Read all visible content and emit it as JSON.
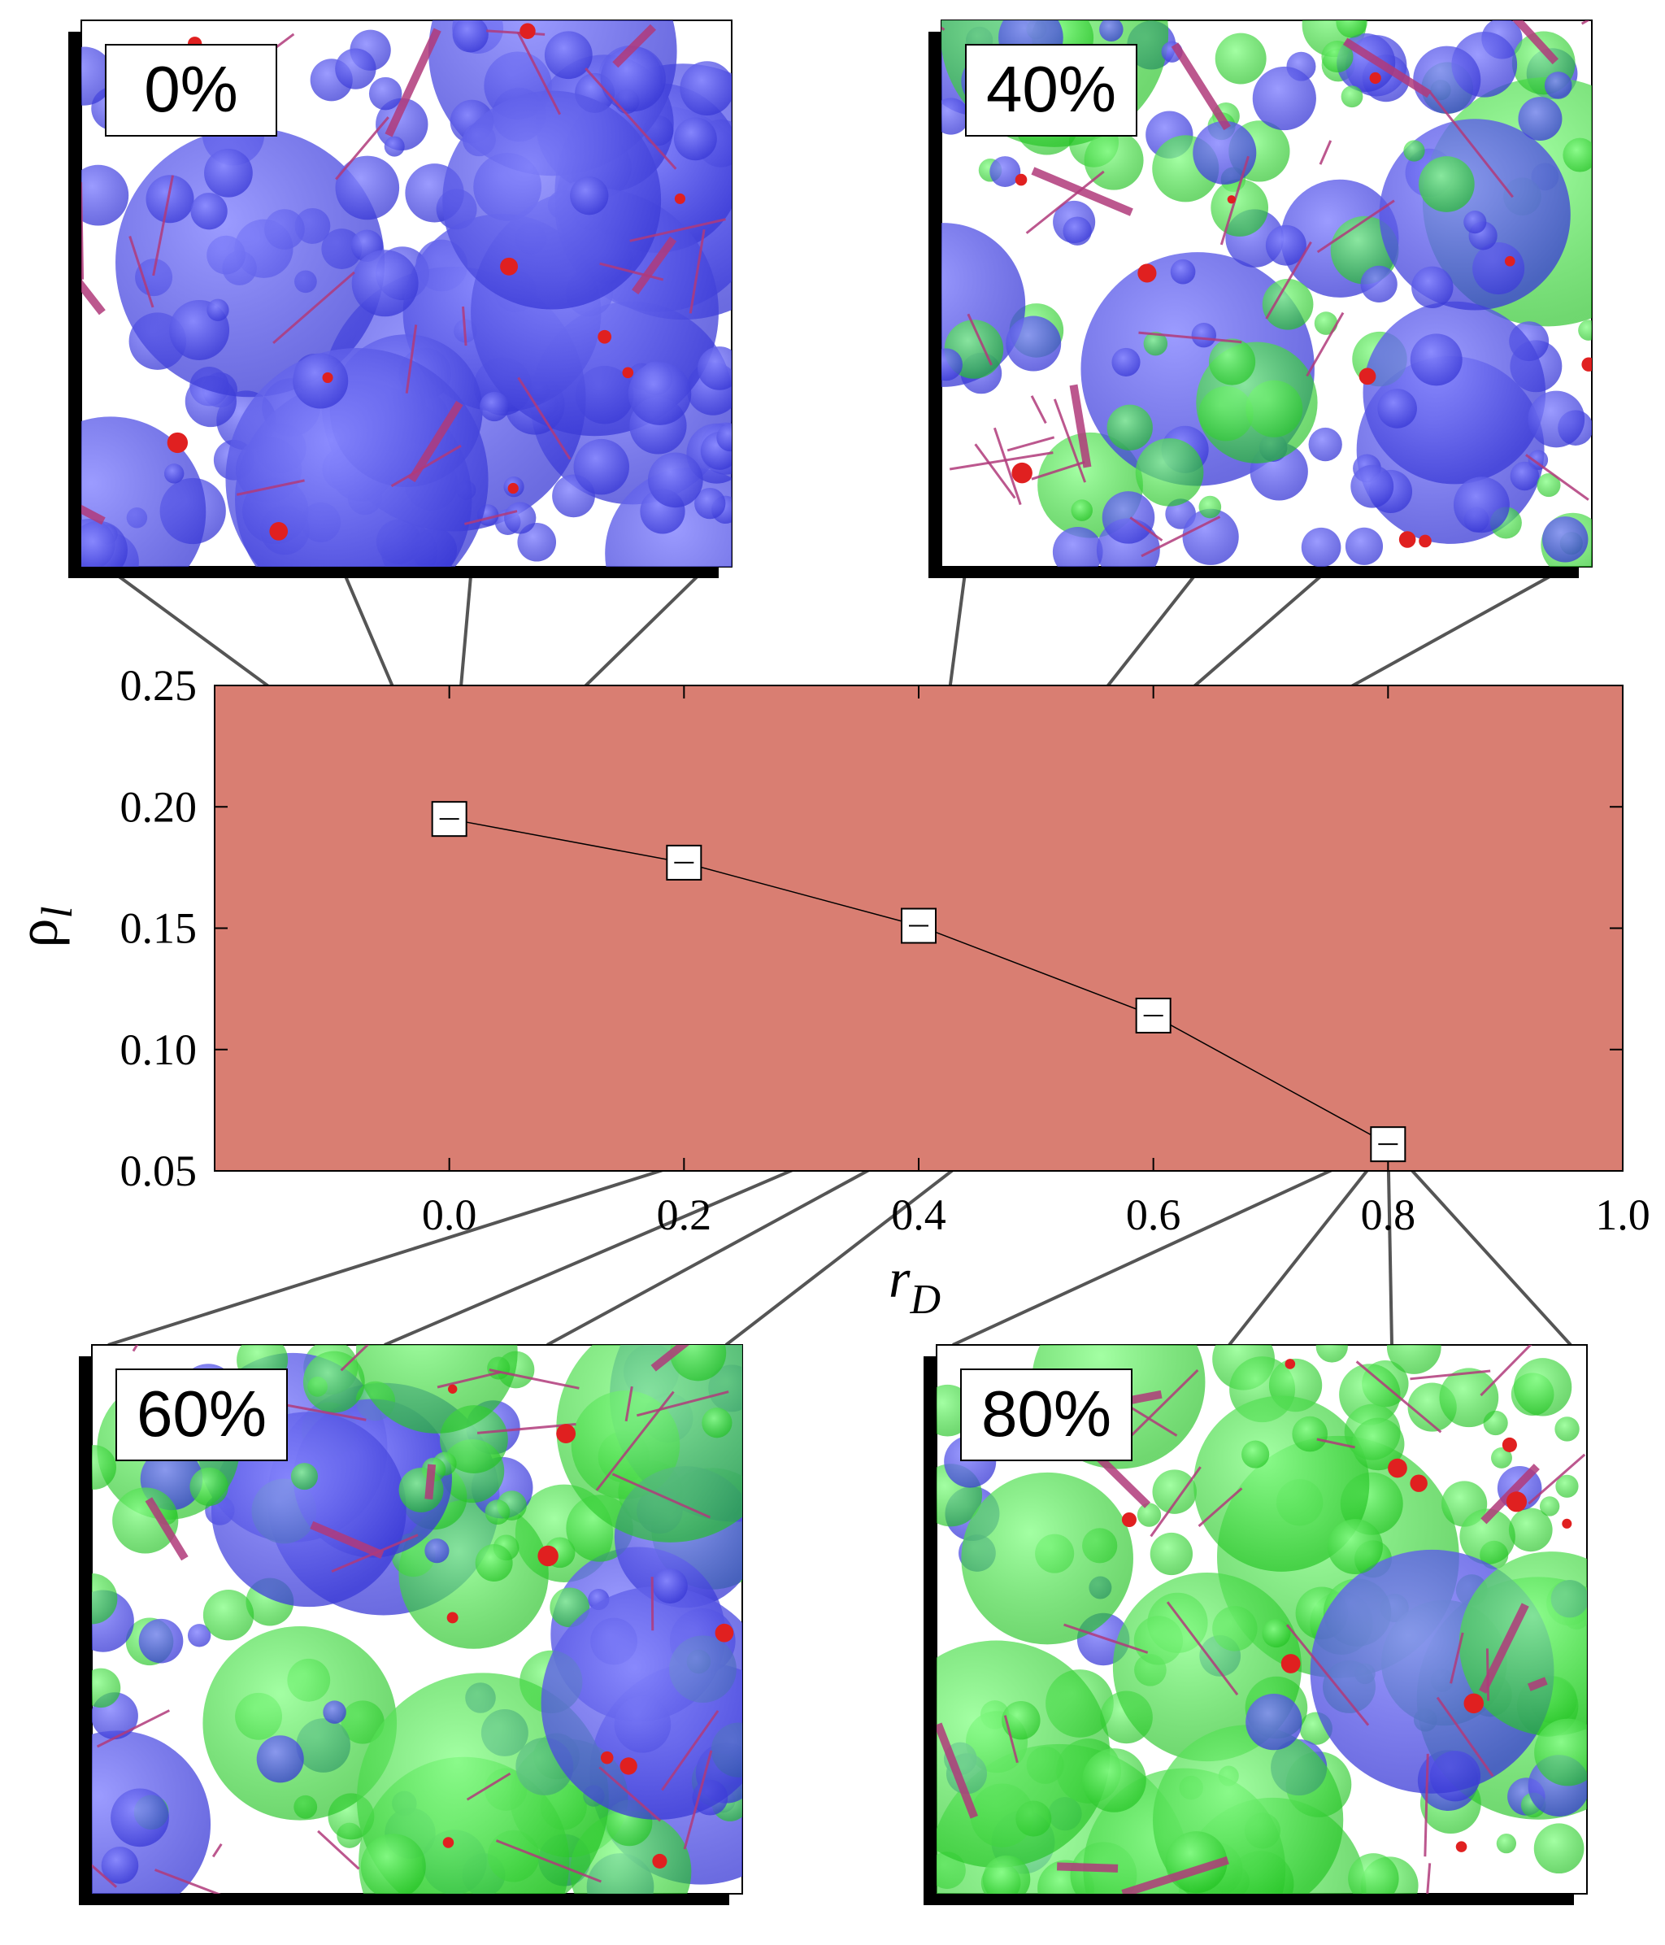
{
  "colors": {
    "plot_background": "#d97e72",
    "marker_fill": "#ffffff",
    "connector_lines": "#555555",
    "inset_blue": "#4a4ae6",
    "inset_green": "#33e633",
    "inset_bond": "#b03a7a"
  },
  "chart_data": {
    "type": "line",
    "xlabel_base": "r",
    "xlabel_sub": "D",
    "ylabel_base": "ρ",
    "ylabel_sub": "l",
    "xlim": [
      -0.2,
      1.0
    ],
    "ylim": [
      0.05,
      0.25
    ],
    "xticks": [
      "0.0",
      "0.2",
      "0.4",
      "0.6",
      "0.8",
      "1.0"
    ],
    "xtick_values": [
      0.0,
      0.2,
      0.4,
      0.6,
      0.8,
      1.0
    ],
    "yticks": [
      "0.25",
      "0.20",
      "0.15",
      "0.10",
      "0.05"
    ],
    "ytick_values": [
      0.25,
      0.2,
      0.15,
      0.1,
      0.05
    ],
    "grid": false,
    "series": [
      {
        "x": [
          0.0,
          0.2,
          0.4,
          0.6,
          0.8
        ],
        "y": [
          0.195,
          0.177,
          0.151,
          0.114,
          0.061
        ]
      }
    ]
  },
  "insets": [
    {
      "label": "0%",
      "point_x": 0.0,
      "point_y": 0.195,
      "blue_share": 1.0
    },
    {
      "label": "40%",
      "point_x": 0.4,
      "point_y": 0.151,
      "blue_share": 0.6
    },
    {
      "label": "60%",
      "point_x": 0.6,
      "point_y": 0.114,
      "blue_share": 0.4
    },
    {
      "label": "80%",
      "point_x": 0.8,
      "point_y": 0.061,
      "blue_share": 0.2
    }
  ]
}
